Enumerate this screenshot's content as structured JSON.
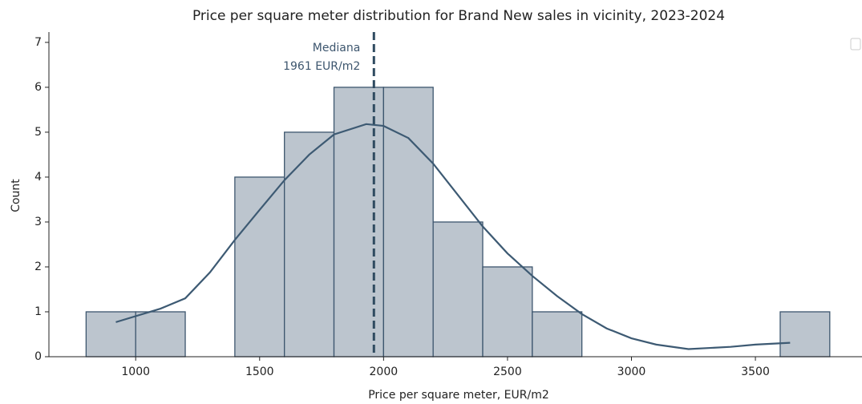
{
  "chart_data": {
    "type": "histogram",
    "title": "Price per square meter distribution for Brand New sales in vicinity, 2023-2024",
    "x_label": "Price per square meter, EUR/m2",
    "y_label": "Count",
    "bins": [
      800,
      1000,
      1200,
      1400,
      1600,
      1800,
      2000,
      2200,
      2400,
      2600,
      2800,
      3000,
      3200,
      3400,
      3600,
      3800
    ],
    "counts": [
      1,
      1,
      0,
      4,
      5,
      6,
      6,
      3,
      2,
      1,
      0,
      0,
      0,
      0,
      1
    ],
    "color": "#bcc5ce",
    "edge_color": "#3d566e",
    "kde": {
      "color": "#3d5a73",
      "x": [
        920,
        1100,
        1200,
        1300,
        1400,
        1500,
        1600,
        1700,
        1800,
        1930,
        2000,
        2100,
        2200,
        2300,
        2400,
        2500,
        2600,
        2700,
        2800,
        2900,
        3000,
        3100,
        3230,
        3400,
        3500,
        3640
      ],
      "y": [
        0.77,
        1.07,
        1.3,
        1.88,
        2.6,
        3.27,
        3.93,
        4.5,
        4.95,
        5.18,
        5.14,
        4.87,
        4.3,
        3.6,
        2.9,
        2.3,
        1.8,
        1.35,
        0.95,
        0.63,
        0.41,
        0.27,
        0.17,
        0.22,
        0.27,
        0.31
      ]
    },
    "median": 1961,
    "median_color": "#2f4b60",
    "annotation": [
      "Mediana",
      "1961 EUR/m2"
    ],
    "xlim": [
      650,
      3930
    ],
    "ylim": [
      0,
      7.23
    ],
    "xticks": [
      1000,
      1500,
      2000,
      2500,
      3000,
      3500
    ],
    "yticks": [
      0,
      1,
      2,
      3,
      4,
      5,
      6,
      7
    ]
  }
}
